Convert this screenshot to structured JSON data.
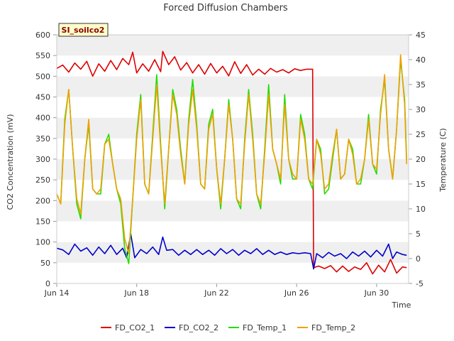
{
  "chart_data": {
    "type": "line",
    "title": "Forced Diffusion Chambers",
    "badge": "SI_soilco2",
    "xlabel": "Time",
    "ylabel_left": "CO2 Concentration (mV)",
    "ylabel_right": "Temperature (C)",
    "x_range_days": [
      14,
      31.6
    ],
    "ylim_left": [
      0,
      600
    ],
    "ylim_right": [
      -5,
      45
    ],
    "x_ticks": [
      {
        "day": 14,
        "label": "Jun 14"
      },
      {
        "day": 18,
        "label": "Jun 18"
      },
      {
        "day": 22,
        "label": "Jun 22"
      },
      {
        "day": 26,
        "label": "Jun 26"
      },
      {
        "day": 30,
        "label": "Jun 30"
      }
    ],
    "y_ticks_left": [
      0,
      50,
      100,
      150,
      200,
      250,
      300,
      350,
      400,
      450,
      500,
      550,
      600
    ],
    "y_ticks_right": [
      -5,
      0,
      5,
      10,
      15,
      20,
      25,
      30,
      35,
      40,
      45
    ],
    "grid": "horizontal bands",
    "legend_position": "bottom",
    "series": [
      {
        "name": "FD_CO2_1",
        "axis": "left",
        "color": "#dd0000",
        "points": [
          [
            14.0,
            519
          ],
          [
            14.3,
            527
          ],
          [
            14.6,
            510
          ],
          [
            14.9,
            532
          ],
          [
            15.2,
            517
          ],
          [
            15.5,
            536
          ],
          [
            15.8,
            500
          ],
          [
            16.1,
            530
          ],
          [
            16.4,
            512
          ],
          [
            16.7,
            538
          ],
          [
            17.0,
            516
          ],
          [
            17.3,
            543
          ],
          [
            17.6,
            528
          ],
          [
            17.8,
            558
          ],
          [
            18.0,
            508
          ],
          [
            18.3,
            530
          ],
          [
            18.6,
            512
          ],
          [
            18.9,
            540
          ],
          [
            19.2,
            511
          ],
          [
            19.3,
            560
          ],
          [
            19.6,
            528
          ],
          [
            19.9,
            547
          ],
          [
            20.2,
            515
          ],
          [
            20.5,
            533
          ],
          [
            20.8,
            508
          ],
          [
            21.1,
            528
          ],
          [
            21.4,
            505
          ],
          [
            21.7,
            531
          ],
          [
            22.0,
            508
          ],
          [
            22.3,
            524
          ],
          [
            22.6,
            501
          ],
          [
            22.9,
            535
          ],
          [
            23.2,
            507
          ],
          [
            23.5,
            528
          ],
          [
            23.8,
            503
          ],
          [
            24.1,
            517
          ],
          [
            24.4,
            505
          ],
          [
            24.7,
            519
          ],
          [
            25.0,
            510
          ],
          [
            25.3,
            516
          ],
          [
            25.6,
            508
          ],
          [
            25.9,
            518
          ],
          [
            26.2,
            514
          ],
          [
            26.5,
            517
          ],
          [
            26.8,
            517
          ],
          [
            26.85,
            38
          ],
          [
            27.1,
            42
          ],
          [
            27.4,
            36
          ],
          [
            27.7,
            43
          ],
          [
            28.0,
            28
          ],
          [
            28.3,
            42
          ],
          [
            28.6,
            29
          ],
          [
            28.9,
            40
          ],
          [
            29.2,
            34
          ],
          [
            29.5,
            50
          ],
          [
            29.8,
            23
          ],
          [
            30.1,
            44
          ],
          [
            30.4,
            28
          ],
          [
            30.7,
            58
          ],
          [
            31.0,
            25
          ],
          [
            31.3,
            40
          ],
          [
            31.5,
            38
          ]
        ]
      },
      {
        "name": "FD_CO2_2",
        "axis": "left",
        "color": "#0000cc",
        "points": [
          [
            14.0,
            85
          ],
          [
            14.3,
            81
          ],
          [
            14.6,
            70
          ],
          [
            14.9,
            95
          ],
          [
            15.2,
            78
          ],
          [
            15.5,
            86
          ],
          [
            15.8,
            68
          ],
          [
            16.1,
            88
          ],
          [
            16.4,
            72
          ],
          [
            16.7,
            92
          ],
          [
            17.0,
            70
          ],
          [
            17.3,
            85
          ],
          [
            17.5,
            62
          ],
          [
            17.7,
            120
          ],
          [
            17.9,
            62
          ],
          [
            18.2,
            82
          ],
          [
            18.5,
            72
          ],
          [
            18.8,
            88
          ],
          [
            19.1,
            70
          ],
          [
            19.3,
            112
          ],
          [
            19.5,
            80
          ],
          [
            19.8,
            82
          ],
          [
            20.1,
            68
          ],
          [
            20.4,
            80
          ],
          [
            20.7,
            70
          ],
          [
            21.0,
            82
          ],
          [
            21.3,
            70
          ],
          [
            21.6,
            80
          ],
          [
            21.9,
            68
          ],
          [
            22.2,
            84
          ],
          [
            22.5,
            72
          ],
          [
            22.8,
            82
          ],
          [
            23.1,
            68
          ],
          [
            23.4,
            80
          ],
          [
            23.7,
            72
          ],
          [
            24.0,
            84
          ],
          [
            24.3,
            70
          ],
          [
            24.6,
            80
          ],
          [
            24.9,
            70
          ],
          [
            25.2,
            76
          ],
          [
            25.5,
            70
          ],
          [
            25.8,
            74
          ],
          [
            26.1,
            72
          ],
          [
            26.4,
            74
          ],
          [
            26.7,
            72
          ],
          [
            26.85,
            35
          ],
          [
            27.0,
            72
          ],
          [
            27.3,
            62
          ],
          [
            27.6,
            75
          ],
          [
            27.9,
            66
          ],
          [
            28.2,
            72
          ],
          [
            28.5,
            60
          ],
          [
            28.8,
            76
          ],
          [
            29.1,
            66
          ],
          [
            29.4,
            78
          ],
          [
            29.7,
            64
          ],
          [
            30.0,
            80
          ],
          [
            30.3,
            66
          ],
          [
            30.6,
            95
          ],
          [
            30.8,
            60
          ],
          [
            31.0,
            76
          ],
          [
            31.3,
            70
          ],
          [
            31.5,
            68
          ]
        ]
      },
      {
        "name": "FD_Temp_1",
        "axis": "right",
        "color": "#22dd00",
        "points": [
          [
            14.0,
            13
          ],
          [
            14.2,
            11
          ],
          [
            14.4,
            28
          ],
          [
            14.6,
            34
          ],
          [
            14.8,
            22
          ],
          [
            15.0,
            11
          ],
          [
            15.2,
            8
          ],
          [
            15.4,
            20
          ],
          [
            15.6,
            27
          ],
          [
            15.8,
            14
          ],
          [
            16.0,
            13
          ],
          [
            16.2,
            13
          ],
          [
            16.4,
            23
          ],
          [
            16.6,
            25
          ],
          [
            16.8,
            19
          ],
          [
            17.0,
            14
          ],
          [
            17.2,
            11
          ],
          [
            17.4,
            2
          ],
          [
            17.6,
            -1
          ],
          [
            17.8,
            12
          ],
          [
            18.0,
            25
          ],
          [
            18.2,
            33
          ],
          [
            18.4,
            15
          ],
          [
            18.6,
            13
          ],
          [
            18.8,
            25
          ],
          [
            19.0,
            37
          ],
          [
            19.2,
            23
          ],
          [
            19.4,
            10
          ],
          [
            19.6,
            22
          ],
          [
            19.8,
            34
          ],
          [
            20.0,
            30
          ],
          [
            20.2,
            22
          ],
          [
            20.4,
            15
          ],
          [
            20.6,
            28
          ],
          [
            20.8,
            36
          ],
          [
            21.0,
            27
          ],
          [
            21.2,
            15
          ],
          [
            21.4,
            14
          ],
          [
            21.6,
            27
          ],
          [
            21.8,
            30
          ],
          [
            22.0,
            18
          ],
          [
            22.2,
            10
          ],
          [
            22.4,
            20
          ],
          [
            22.6,
            32
          ],
          [
            22.8,
            24
          ],
          [
            23.0,
            12
          ],
          [
            23.2,
            10
          ],
          [
            23.4,
            24
          ],
          [
            23.6,
            34
          ],
          [
            23.8,
            25
          ],
          [
            24.0,
            13
          ],
          [
            24.2,
            10
          ],
          [
            24.4,
            22
          ],
          [
            24.6,
            35
          ],
          [
            24.8,
            22
          ],
          [
            25.0,
            19
          ],
          [
            25.2,
            15
          ],
          [
            25.4,
            33
          ],
          [
            25.6,
            20
          ],
          [
            25.8,
            16
          ],
          [
            26.0,
            16
          ],
          [
            26.2,
            29
          ],
          [
            26.4,
            25
          ],
          [
            26.6,
            16
          ],
          [
            26.8,
            14
          ],
          [
            27.0,
            24
          ],
          [
            27.2,
            22
          ],
          [
            27.4,
            13
          ],
          [
            27.6,
            14
          ],
          [
            27.8,
            20
          ],
          [
            28.0,
            26
          ],
          [
            28.2,
            16
          ],
          [
            28.4,
            17
          ],
          [
            28.6,
            24
          ],
          [
            28.8,
            22
          ],
          [
            29.0,
            15
          ],
          [
            29.2,
            15
          ],
          [
            29.4,
            20
          ],
          [
            29.6,
            29
          ],
          [
            29.8,
            19
          ],
          [
            30.0,
            17
          ],
          [
            30.2,
            30
          ],
          [
            30.4,
            36
          ],
          [
            30.6,
            22
          ],
          [
            30.8,
            16
          ],
          [
            31.0,
            26
          ],
          [
            31.2,
            40
          ],
          [
            31.4,
            32
          ],
          [
            31.5,
            20
          ]
        ]
      },
      {
        "name": "FD_Temp_2",
        "axis": "right",
        "color": "#f0a000",
        "points": [
          [
            14.0,
            13
          ],
          [
            14.2,
            11
          ],
          [
            14.4,
            27
          ],
          [
            14.6,
            34
          ],
          [
            14.8,
            22
          ],
          [
            15.0,
            12
          ],
          [
            15.2,
            9
          ],
          [
            15.4,
            20
          ],
          [
            15.6,
            28
          ],
          [
            15.8,
            14
          ],
          [
            16.0,
            13
          ],
          [
            16.2,
            14
          ],
          [
            16.4,
            23
          ],
          [
            16.6,
            24
          ],
          [
            16.8,
            19
          ],
          [
            17.0,
            14
          ],
          [
            17.2,
            12
          ],
          [
            17.4,
            4
          ],
          [
            17.6,
            1
          ],
          [
            17.8,
            12
          ],
          [
            18.0,
            24
          ],
          [
            18.2,
            32
          ],
          [
            18.4,
            15
          ],
          [
            18.6,
            13
          ],
          [
            18.8,
            24
          ],
          [
            19.0,
            35
          ],
          [
            19.2,
            22
          ],
          [
            19.4,
            11
          ],
          [
            19.6,
            22
          ],
          [
            19.8,
            33
          ],
          [
            20.0,
            29
          ],
          [
            20.2,
            21
          ],
          [
            20.4,
            15
          ],
          [
            20.6,
            27
          ],
          [
            20.8,
            34
          ],
          [
            21.0,
            26
          ],
          [
            21.2,
            15
          ],
          [
            21.4,
            14
          ],
          [
            21.6,
            26
          ],
          [
            21.8,
            29
          ],
          [
            22.0,
            18
          ],
          [
            22.2,
            11
          ],
          [
            22.4,
            20
          ],
          [
            22.6,
            31
          ],
          [
            22.8,
            24
          ],
          [
            23.0,
            12
          ],
          [
            23.2,
            11
          ],
          [
            23.4,
            23
          ],
          [
            23.6,
            33
          ],
          [
            23.8,
            24
          ],
          [
            24.0,
            13
          ],
          [
            24.2,
            11
          ],
          [
            24.4,
            21
          ],
          [
            24.6,
            33
          ],
          [
            24.8,
            22
          ],
          [
            25.0,
            19
          ],
          [
            25.2,
            16
          ],
          [
            25.4,
            31
          ],
          [
            25.6,
            20
          ],
          [
            25.8,
            17
          ],
          [
            26.0,
            16
          ],
          [
            26.2,
            28
          ],
          [
            26.4,
            24
          ],
          [
            26.6,
            16
          ],
          [
            26.8,
            15
          ],
          [
            27.0,
            24
          ],
          [
            27.2,
            21
          ],
          [
            27.4,
            14
          ],
          [
            27.6,
            15
          ],
          [
            27.8,
            21
          ],
          [
            28.0,
            26
          ],
          [
            28.2,
            16
          ],
          [
            28.4,
            17
          ],
          [
            28.6,
            24
          ],
          [
            28.8,
            21
          ],
          [
            29.0,
            15
          ],
          [
            29.2,
            16
          ],
          [
            29.4,
            20
          ],
          [
            29.6,
            28
          ],
          [
            29.8,
            19
          ],
          [
            30.0,
            18
          ],
          [
            30.2,
            29
          ],
          [
            30.4,
            37
          ],
          [
            30.6,
            22
          ],
          [
            30.8,
            16
          ],
          [
            31.0,
            26
          ],
          [
            31.2,
            41
          ],
          [
            31.4,
            31
          ],
          [
            31.5,
            19
          ]
        ]
      }
    ]
  }
}
